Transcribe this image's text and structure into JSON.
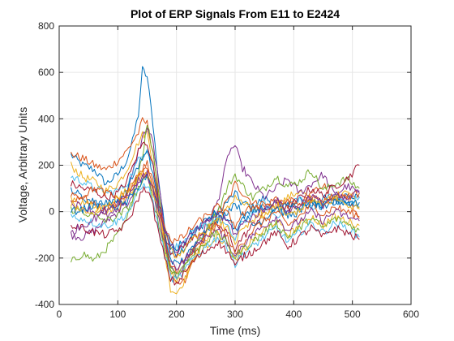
{
  "chart_data": {
    "type": "line",
    "title": "Plot of ERP Signals From E11 to E2424",
    "xlabel": "Time (ms)",
    "ylabel": "Voltage, Arbitrary Units",
    "xlim": [
      0,
      600
    ],
    "ylim": [
      -400,
      800
    ],
    "xticks": [
      0,
      100,
      200,
      300,
      400,
      500,
      600
    ],
    "yticks": [
      -400,
      -200,
      0,
      200,
      400,
      600,
      800
    ],
    "grid": true,
    "legend": false,
    "x_range_of_series": [
      20,
      512
    ],
    "x_samples": [
      20,
      40,
      60,
      80,
      100,
      115,
      125,
      135,
      142,
      150,
      160,
      170,
      180,
      190,
      200,
      215,
      230,
      250,
      270,
      290,
      300,
      310,
      330,
      350,
      370,
      390,
      410,
      430,
      450,
      470,
      490,
      512
    ],
    "colors": [
      "#0072BD",
      "#D95319",
      "#EDB120",
      "#7E2F8E",
      "#77AC30",
      "#4DBEEE",
      "#A2142F"
    ],
    "series": [
      {
        "values": [
          245,
          200,
          180,
          120,
          160,
          220,
          300,
          420,
          612,
          580,
          380,
          120,
          -60,
          -160,
          -180,
          -150,
          -100,
          -40,
          0,
          50,
          80,
          40,
          20,
          60,
          30,
          0,
          50,
          20,
          60,
          30,
          80,
          60
        ]
      },
      {
        "values": [
          250,
          230,
          200,
          180,
          220,
          260,
          300,
          340,
          390,
          380,
          260,
          60,
          -120,
          -260,
          -320,
          -300,
          -200,
          -100,
          -20,
          60,
          120,
          90,
          40,
          20,
          60,
          30,
          20,
          80,
          120,
          40,
          60,
          -30
        ]
      },
      {
        "values": [
          200,
          150,
          130,
          90,
          120,
          180,
          240,
          300,
          330,
          340,
          220,
          40,
          -180,
          -330,
          -350,
          -290,
          -200,
          -120,
          -40,
          20,
          70,
          40,
          10,
          -20,
          30,
          60,
          90,
          50,
          40,
          60,
          100,
          20
        ]
      },
      {
        "values": [
          -100,
          -110,
          -80,
          -40,
          0,
          60,
          160,
          260,
          320,
          360,
          300,
          120,
          -100,
          -250,
          -280,
          -220,
          -150,
          -60,
          40,
          260,
          285,
          200,
          120,
          60,
          100,
          140,
          80,
          120,
          160,
          70,
          110,
          80
        ]
      },
      {
        "values": [
          -220,
          -180,
          -210,
          -160,
          -100,
          -40,
          60,
          180,
          240,
          380,
          260,
          80,
          -120,
          -240,
          -280,
          -220,
          -160,
          -80,
          0,
          120,
          160,
          120,
          60,
          100,
          150,
          110,
          130,
          180,
          90,
          120,
          140,
          100
        ]
      },
      {
        "values": [
          150,
          130,
          100,
          80,
          90,
          120,
          170,
          220,
          240,
          280,
          200,
          40,
          -100,
          -180,
          -150,
          -130,
          -90,
          -60,
          -20,
          -80,
          -120,
          -60,
          0,
          40,
          -20,
          30,
          60,
          20,
          40,
          80,
          30,
          60
        ]
      },
      {
        "values": [
          120,
          100,
          90,
          60,
          80,
          130,
          190,
          260,
          290,
          300,
          200,
          40,
          -90,
          -170,
          -180,
          -140,
          -110,
          -80,
          -60,
          -100,
          -160,
          -120,
          -60,
          0,
          40,
          10,
          60,
          100,
          70,
          110,
          140,
          200
        ]
      },
      {
        "values": [
          100,
          60,
          40,
          20,
          50,
          90,
          150,
          200,
          230,
          250,
          170,
          20,
          -110,
          -200,
          -230,
          -200,
          -150,
          -80,
          -40,
          10,
          40,
          0,
          -60,
          -30,
          20,
          -20,
          0,
          40,
          20,
          60,
          40,
          20
        ]
      },
      {
        "values": [
          80,
          60,
          30,
          10,
          40,
          70,
          110,
          160,
          190,
          210,
          130,
          0,
          -130,
          -230,
          -250,
          -210,
          -170,
          -110,
          -60,
          -120,
          -190,
          -140,
          -80,
          -40,
          0,
          -60,
          -20,
          30,
          -10,
          20,
          0,
          -20
        ]
      },
      {
        "values": [
          60,
          40,
          20,
          0,
          20,
          50,
          90,
          140,
          170,
          180,
          100,
          -20,
          -150,
          -260,
          -300,
          -260,
          -200,
          -150,
          -100,
          -160,
          -220,
          -180,
          -120,
          -80,
          -40,
          -100,
          -60,
          -20,
          -60,
          -20,
          -40,
          -60
        ]
      },
      {
        "values": [
          40,
          20,
          0,
          -20,
          0,
          30,
          70,
          120,
          150,
          160,
          80,
          -40,
          -140,
          -220,
          -240,
          -200,
          -160,
          -110,
          -80,
          -140,
          -200,
          -150,
          -100,
          -60,
          -20,
          -80,
          -40,
          0,
          -40,
          0,
          -20,
          -40
        ]
      },
      {
        "values": [
          10,
          0,
          -20,
          -40,
          -20,
          10,
          50,
          100,
          130,
          140,
          60,
          -60,
          -160,
          -250,
          -270,
          -230,
          -180,
          -130,
          -90,
          -150,
          -200,
          -170,
          -130,
          -90,
          -50,
          -110,
          -70,
          -30,
          -70,
          -30,
          -50,
          -80
        ]
      },
      {
        "values": [
          -20,
          -30,
          -50,
          -60,
          -40,
          -10,
          30,
          80,
          110,
          120,
          40,
          -80,
          -180,
          -280,
          -300,
          -250,
          -200,
          -150,
          -110,
          -160,
          -230,
          -190,
          -150,
          -110,
          -70,
          -130,
          -90,
          -50,
          -90,
          -50,
          -70,
          -110
        ]
      },
      {
        "values": [
          -60,
          -70,
          -90,
          -100,
          -80,
          -50,
          0,
          60,
          90,
          100,
          20,
          -100,
          -200,
          -290,
          -310,
          -260,
          -210,
          -170,
          -130,
          -180,
          -240,
          -200,
          -170,
          -130,
          -90,
          -150,
          -110,
          -70,
          -110,
          -70,
          -90,
          -120
        ]
      },
      {
        "values": [
          0,
          10,
          30,
          40,
          20,
          40,
          70,
          110,
          140,
          150,
          90,
          0,
          -80,
          -140,
          -160,
          -120,
          -80,
          -40,
          0,
          -40,
          -80,
          -40,
          0,
          20,
          0,
          30,
          10,
          40,
          20,
          50,
          30,
          40
        ]
      },
      {
        "values": [
          50,
          70,
          100,
          80,
          60,
          80,
          110,
          150,
          170,
          180,
          120,
          20,
          -60,
          -120,
          -130,
          -100,
          -60,
          -20,
          20,
          -20,
          -60,
          -20,
          20,
          40,
          20,
          50,
          30,
          60,
          40,
          70,
          60,
          80
        ]
      },
      {
        "values": [
          30,
          10,
          -10,
          30,
          60,
          90,
          120,
          150,
          160,
          150,
          90,
          0,
          -100,
          -170,
          -190,
          -160,
          -120,
          -80,
          -40,
          -80,
          -130,
          -90,
          -40,
          -10,
          30,
          -20,
          10,
          50,
          20,
          60,
          30,
          10
        ]
      },
      {
        "values": [
          -90,
          -60,
          -30,
          10,
          40,
          70,
          100,
          140,
          150,
          160,
          100,
          10,
          -80,
          -150,
          -170,
          -130,
          -90,
          -50,
          -10,
          -50,
          -100,
          -60,
          -20,
          10,
          50,
          0,
          30,
          70,
          30,
          70,
          50,
          90
        ]
      }
    ]
  }
}
